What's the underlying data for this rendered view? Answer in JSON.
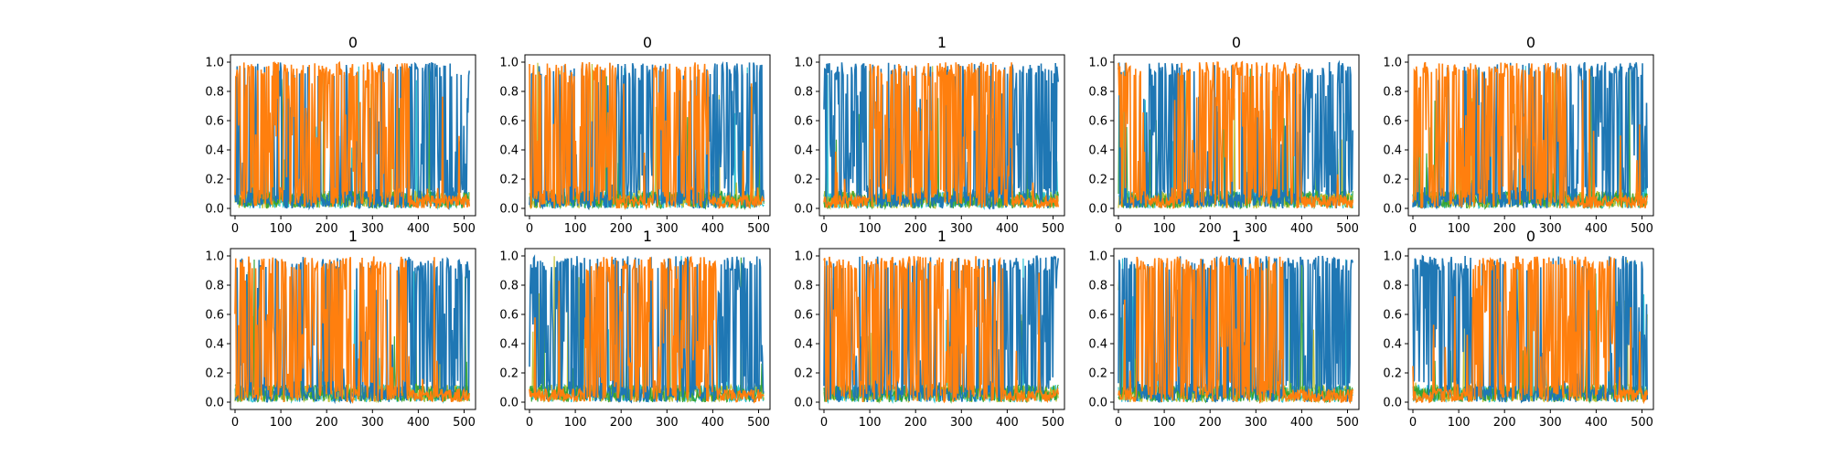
{
  "chart_data": [
    {
      "type": "line",
      "title": "0",
      "xlim": [
        -10,
        525
      ],
      "ylim": [
        -0.05,
        1.05
      ],
      "xticks": [
        "0",
        "100",
        "200",
        "300",
        "400",
        "500"
      ],
      "yticks": [
        "0.0",
        "0.2",
        "0.4",
        "0.6",
        "0.8",
        "1.0"
      ],
      "colors": [
        "#1f77b4",
        "#ff7f0e",
        "#17becf",
        "#bcbd22",
        "#2ca02c"
      ],
      "regions": [
        {
          "x": [
            0,
            380
          ],
          "series": "#ff7f0e",
          "mean": 0.5
        },
        {
          "x": [
            380,
            512
          ],
          "series": "#1f77b4",
          "mean": 0.5
        }
      ]
    },
    {
      "type": "line",
      "title": "0",
      "xlim": [
        -10,
        525
      ],
      "ylim": [
        -0.05,
        1.05
      ],
      "xticks": [
        "0",
        "100",
        "200",
        "300",
        "400",
        "500"
      ],
      "yticks": [
        "0.0",
        "0.2",
        "0.4",
        "0.6",
        "0.8",
        "1.0"
      ],
      "colors": [
        "#1f77b4",
        "#ff7f0e",
        "#17becf",
        "#bcbd22",
        "#2ca02c"
      ],
      "regions": [
        {
          "x": [
            0,
            190
          ],
          "series": "#ff7f0e",
          "mean": 0.5
        },
        {
          "x": [
            190,
            270
          ],
          "series": "#1f77b4",
          "mean": 0.5
        },
        {
          "x": [
            270,
            390
          ],
          "series": "#ff7f0e",
          "mean": 0.5
        },
        {
          "x": [
            390,
            512
          ],
          "series": "#1f77b4",
          "mean": 0.5
        }
      ]
    },
    {
      "type": "line",
      "title": "1",
      "xlim": [
        -10,
        525
      ],
      "ylim": [
        -0.05,
        1.05
      ],
      "xticks": [
        "0",
        "100",
        "200",
        "300",
        "400",
        "500"
      ],
      "yticks": [
        "0.0",
        "0.2",
        "0.4",
        "0.6",
        "0.8",
        "1.0"
      ],
      "colors": [
        "#1f77b4",
        "#ff7f0e",
        "#17becf",
        "#bcbd22",
        "#2ca02c"
      ],
      "regions": [
        {
          "x": [
            0,
            100
          ],
          "series": "#1f77b4",
          "mean": 0.5
        },
        {
          "x": [
            100,
            410
          ],
          "series": "#ff7f0e",
          "mean": 0.5
        },
        {
          "x": [
            410,
            512
          ],
          "series": "#1f77b4",
          "mean": 0.5
        }
      ]
    },
    {
      "type": "line",
      "title": "0",
      "xlim": [
        -10,
        525
      ],
      "ylim": [
        -0.05,
        1.05
      ],
      "xticks": [
        "0",
        "100",
        "200",
        "300",
        "400",
        "500"
      ],
      "yticks": [
        "0.0",
        "0.2",
        "0.4",
        "0.6",
        "0.8",
        "1.0"
      ],
      "colors": [
        "#1f77b4",
        "#ff7f0e",
        "#17becf",
        "#bcbd22",
        "#2ca02c"
      ],
      "regions": [
        {
          "x": [
            0,
            60
          ],
          "series": "#ff7f0e",
          "mean": 0.5
        },
        {
          "x": [
            60,
            130
          ],
          "series": "#1f77b4",
          "mean": 0.5
        },
        {
          "x": [
            130,
            400
          ],
          "series": "#ff7f0e",
          "mean": 0.5
        },
        {
          "x": [
            400,
            512
          ],
          "series": "#1f77b4",
          "mean": 0.5
        }
      ]
    },
    {
      "type": "line",
      "title": "0",
      "xlim": [
        -10,
        525
      ],
      "ylim": [
        -0.05,
        1.05
      ],
      "xticks": [
        "0",
        "100",
        "200",
        "300",
        "400",
        "500"
      ],
      "yticks": [
        "0.0",
        "0.2",
        "0.4",
        "0.6",
        "0.8",
        "1.0"
      ],
      "colors": [
        "#1f77b4",
        "#ff7f0e",
        "#17becf",
        "#bcbd22",
        "#2ca02c"
      ],
      "regions": [
        {
          "x": [
            0,
            335
          ],
          "series": "#ff7f0e",
          "mean": 0.5
        },
        {
          "x": [
            335,
            512
          ],
          "series": "#1f77b4",
          "mean": 0.5
        }
      ]
    },
    {
      "type": "line",
      "title": "1",
      "xlim": [
        -10,
        525
      ],
      "ylim": [
        -0.05,
        1.05
      ],
      "xticks": [
        "0",
        "100",
        "200",
        "300",
        "400",
        "500"
      ],
      "yticks": [
        "0.0",
        "0.2",
        "0.4",
        "0.6",
        "0.8",
        "1.0"
      ],
      "colors": [
        "#1f77b4",
        "#ff7f0e",
        "#17becf",
        "#bcbd22",
        "#2ca02c"
      ],
      "regions": [
        {
          "x": [
            0,
            380
          ],
          "series": "#ff7f0e",
          "mean": 0.5
        },
        {
          "x": [
            380,
            512
          ],
          "series": "#1f77b4",
          "mean": 0.5
        }
      ]
    },
    {
      "type": "line",
      "title": "1",
      "xlim": [
        -10,
        525
      ],
      "ylim": [
        -0.05,
        1.05
      ],
      "xticks": [
        "0",
        "100",
        "200",
        "300",
        "400",
        "500"
      ],
      "yticks": [
        "0.0",
        "0.2",
        "0.4",
        "0.6",
        "0.8",
        "1.0"
      ],
      "colors": [
        "#1f77b4",
        "#ff7f0e",
        "#17becf",
        "#bcbd22",
        "#2ca02c"
      ],
      "regions": [
        {
          "x": [
            0,
            120
          ],
          "series": "#1f77b4",
          "mean": 0.5
        },
        {
          "x": [
            120,
            410
          ],
          "series": "#ff7f0e",
          "mean": 0.5
        },
        {
          "x": [
            410,
            512
          ],
          "series": "#1f77b4",
          "mean": 0.5
        }
      ]
    },
    {
      "type": "line",
      "title": "1",
      "xlim": [
        -10,
        525
      ],
      "ylim": [
        -0.05,
        1.05
      ],
      "xticks": [
        "0",
        "100",
        "200",
        "300",
        "400",
        "500"
      ],
      "yticks": [
        "0.0",
        "0.2",
        "0.4",
        "0.6",
        "0.8",
        "1.0"
      ],
      "colors": [
        "#1f77b4",
        "#ff7f0e",
        "#17becf",
        "#bcbd22",
        "#2ca02c"
      ],
      "regions": [
        {
          "x": [
            0,
            390
          ],
          "series": "#ff7f0e",
          "mean": 0.5
        },
        {
          "x": [
            390,
            512
          ],
          "series": "#1f77b4",
          "mean": 0.5
        }
      ]
    },
    {
      "type": "line",
      "title": "1",
      "xlim": [
        -10,
        525
      ],
      "ylim": [
        -0.05,
        1.05
      ],
      "xticks": [
        "0",
        "100",
        "200",
        "300",
        "400",
        "500"
      ],
      "yticks": [
        "0.0",
        "0.2",
        "0.4",
        "0.6",
        "0.8",
        "1.0"
      ],
      "colors": [
        "#1f77b4",
        "#ff7f0e",
        "#17becf",
        "#bcbd22",
        "#2ca02c"
      ],
      "regions": [
        {
          "x": [
            0,
            40
          ],
          "series": "#1f77b4",
          "mean": 0.5
        },
        {
          "x": [
            40,
            360
          ],
          "series": "#ff7f0e",
          "mean": 0.5
        },
        {
          "x": [
            360,
            512
          ],
          "series": "#1f77b4",
          "mean": 0.5
        }
      ]
    },
    {
      "type": "line",
      "title": "0",
      "xlim": [
        -10,
        525
      ],
      "ylim": [
        -0.05,
        1.05
      ],
      "xticks": [
        "0",
        "100",
        "200",
        "300",
        "400",
        "500"
      ],
      "yticks": [
        "0.0",
        "0.2",
        "0.4",
        "0.6",
        "0.8",
        "1.0"
      ],
      "colors": [
        "#1f77b4",
        "#ff7f0e",
        "#17becf",
        "#bcbd22",
        "#2ca02c"
      ],
      "regions": [
        {
          "x": [
            0,
            130
          ],
          "series": "#1f77b4",
          "mean": 0.5
        },
        {
          "x": [
            130,
            440
          ],
          "series": "#ff7f0e",
          "mean": 0.5
        },
        {
          "x": [
            440,
            512
          ],
          "series": "#1f77b4",
          "mean": 0.5
        }
      ]
    }
  ]
}
